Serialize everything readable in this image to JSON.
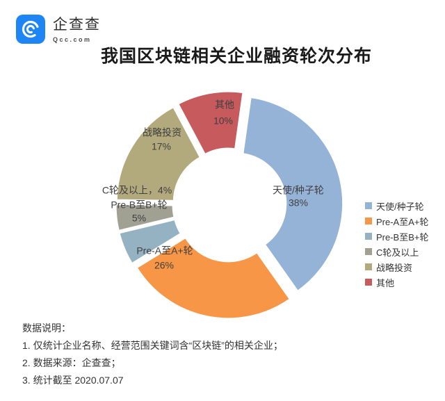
{
  "logo": {
    "brand": "企查查",
    "domain": "Qcc.com",
    "color": "#1D86F4"
  },
  "chart_data": {
    "type": "pie",
    "subtype": "exploded-donut",
    "title": "我国区块链相关企业融资轮次分布",
    "unit": "%",
    "categories": [
      "天使/种子轮",
      "Pre-A至A+轮",
      "Pre-B至B+轮",
      "C轮及以上",
      "战略投资",
      "其他"
    ],
    "values": [
      38,
      26,
      5,
      4,
      17,
      10
    ],
    "colors": [
      "#95B3D7",
      "#F79646",
      "#94B2C2",
      "#A1A193",
      "#B2A97C",
      "#C65A5C"
    ],
    "slice_labels": [
      [
        "天使/种子轮",
        "38%"
      ],
      [
        "Pre-A至A+轮",
        "26%"
      ],
      [
        "Pre-B至B+轮",
        "5%"
      ],
      [
        "C轮及以上，4%"
      ],
      [
        "战略投资",
        "17%"
      ],
      [
        "其他",
        "10%"
      ]
    ],
    "legend_position": "right",
    "legend_entries": [
      "天使/种子轮",
      "Pre-A至A+轮",
      "Pre-B至B+轮",
      "C轮及以上",
      "战略投资",
      "其他"
    ],
    "start_angle_deg": 8,
    "donut_hole": true
  },
  "notes": {
    "heading": "数据说明：",
    "items": [
      "1. 仅统计企业名称、经营范围关键词含“区块链”的相关企业；",
      "2. 数据来源：企查查；",
      "3. 统计截至 2020.07.07"
    ]
  }
}
